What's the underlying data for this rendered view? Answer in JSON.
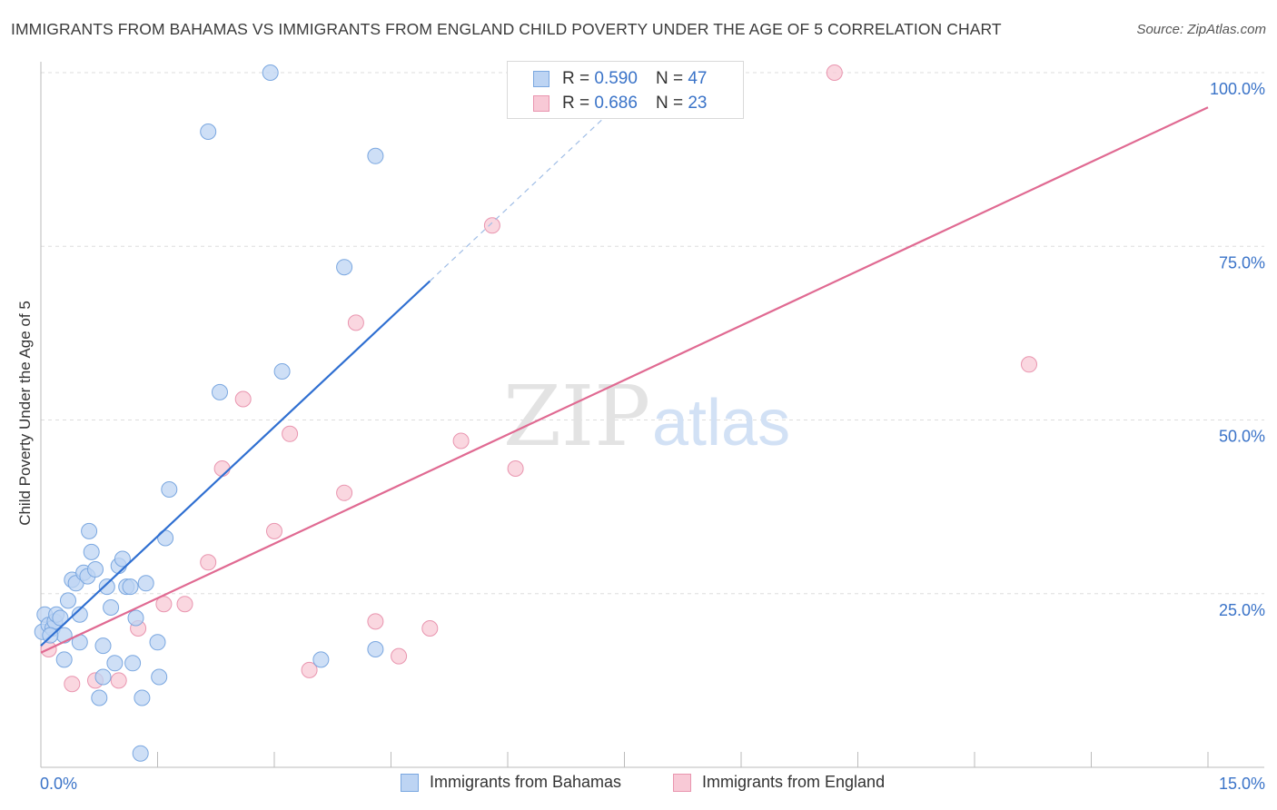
{
  "title": "IMMIGRANTS FROM BAHAMAS VS IMMIGRANTS FROM ENGLAND CHILD POVERTY UNDER THE AGE OF 5 CORRELATION CHART",
  "source": "Source: ZipAtlas.com",
  "watermark": {
    "zip": "ZIP",
    "atlas": "atlas"
  },
  "legend_top": {
    "r_label": "R =",
    "n_label": "N =",
    "series": [
      {
        "r": "0.590",
        "n": "47"
      },
      {
        "r": "0.686",
        "n": "23"
      }
    ]
  },
  "colors": {
    "blue_fill": "#bdd4f3",
    "blue_stroke": "#7aa7e0",
    "blue_line": "#2f6fd1",
    "pink_fill": "#f8c9d6",
    "pink_stroke": "#e995af",
    "pink_line": "#e06a92",
    "axis_text": "#3a73c8",
    "grid": "#dddddd"
  },
  "chart_data": {
    "type": "scatter",
    "title": "IMMIGRANTS FROM BAHAMAS VS IMMIGRANTS FROM ENGLAND CHILD POVERTY UNDER THE AGE OF 5 CORRELATION CHART",
    "xlabel": "",
    "ylabel": "Child Poverty Under the Age of 5",
    "xlim": [
      0,
      15
    ],
    "ylim": [
      0,
      100
    ],
    "x_tick_labels": {
      "left": "0.0%",
      "right": "15.0%"
    },
    "y_ticks": [
      {
        "value": 25,
        "label": "25.0%"
      },
      {
        "value": 50,
        "label": "50.0%"
      },
      {
        "value": 75,
        "label": "75.0%"
      },
      {
        "value": 100,
        "label": "100.0%"
      }
    ],
    "series": [
      {
        "name": "Immigrants from Bahamas",
        "color": "blue",
        "trend": {
          "x0": 0.0,
          "y0": 17.5,
          "x1": 5.0,
          "y1": 70.0,
          "dash_to_x": 8.0
        },
        "points": [
          [
            0.02,
            19.5
          ],
          [
            0.05,
            22.0
          ],
          [
            0.1,
            20.5
          ],
          [
            0.15,
            20.0
          ],
          [
            0.18,
            21.0
          ],
          [
            0.2,
            22.0
          ],
          [
            0.25,
            21.5
          ],
          [
            0.3,
            19.0
          ],
          [
            0.35,
            24.0
          ],
          [
            0.4,
            27.0
          ],
          [
            0.45,
            26.5
          ],
          [
            0.5,
            18.0
          ],
          [
            0.5,
            22.0
          ],
          [
            0.55,
            28.0
          ],
          [
            0.6,
            27.5
          ],
          [
            0.62,
            34.0
          ],
          [
            0.65,
            31.0
          ],
          [
            0.7,
            28.5
          ],
          [
            0.75,
            10.0
          ],
          [
            0.8,
            13.0
          ],
          [
            0.8,
            17.5
          ],
          [
            0.85,
            26.0
          ],
          [
            0.9,
            23.0
          ],
          [
            0.95,
            15.0
          ],
          [
            1.0,
            29.0
          ],
          [
            1.05,
            30.0
          ],
          [
            1.1,
            26.0
          ],
          [
            1.15,
            26.0
          ],
          [
            1.18,
            15.0
          ],
          [
            1.22,
            21.5
          ],
          [
            1.3,
            10.0
          ],
          [
            1.35,
            26.5
          ],
          [
            1.5,
            18.0
          ],
          [
            1.52,
            13.0
          ],
          [
            1.6,
            33.0
          ],
          [
            1.65,
            40.0
          ],
          [
            2.15,
            91.5
          ],
          [
            2.3,
            54.0
          ],
          [
            2.95,
            100.0
          ],
          [
            3.1,
            57.0
          ],
          [
            3.6,
            15.5
          ],
          [
            3.9,
            72.0
          ],
          [
            4.3,
            17.0
          ],
          [
            4.3,
            88.0
          ],
          [
            1.28,
            2.0
          ],
          [
            0.3,
            15.5
          ],
          [
            0.12,
            19.0
          ]
        ]
      },
      {
        "name": "Immigrants from England",
        "color": "pink",
        "trend": {
          "x0": 0.0,
          "y0": 16.5,
          "x1": 15.0,
          "y1": 95.0
        },
        "points": [
          [
            0.1,
            17.0
          ],
          [
            0.4,
            12.0
          ],
          [
            0.7,
            12.5
          ],
          [
            1.0,
            12.5
          ],
          [
            1.25,
            20.0
          ],
          [
            1.58,
            23.5
          ],
          [
            1.85,
            23.5
          ],
          [
            2.15,
            29.5
          ],
          [
            2.33,
            43.0
          ],
          [
            2.6,
            53.0
          ],
          [
            3.0,
            34.0
          ],
          [
            3.2,
            48.0
          ],
          [
            3.45,
            14.0
          ],
          [
            3.9,
            39.5
          ],
          [
            4.05,
            64.0
          ],
          [
            4.3,
            21.0
          ],
          [
            4.6,
            16.0
          ],
          [
            5.0,
            20.0
          ],
          [
            5.4,
            47.0
          ],
          [
            5.8,
            78.0
          ],
          [
            6.1,
            43.0
          ],
          [
            10.2,
            100.0
          ],
          [
            12.7,
            58.0
          ]
        ]
      }
    ]
  }
}
